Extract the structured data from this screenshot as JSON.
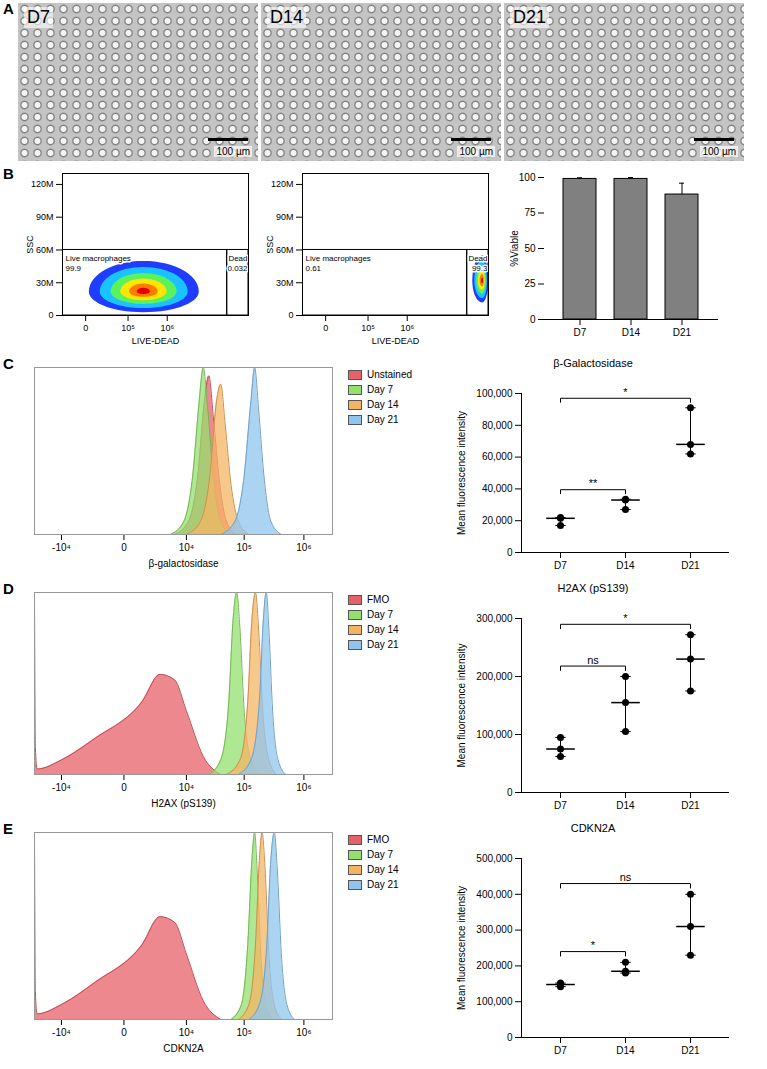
{
  "chart_data": [
    {
      "panel": "A",
      "type": "image",
      "images": [
        {
          "label": "D7",
          "scale_bar": "100 µm"
        },
        {
          "label": "D14",
          "scale_bar": "100 µm"
        },
        {
          "label": "D21",
          "scale_bar": "100 µm"
        }
      ]
    },
    {
      "panel": "B",
      "type": "density",
      "xlabel": "LIVE-DEAD",
      "ylabel": "SSC",
      "log": "x",
      "xlim": [
        -27000,
        100000000
      ],
      "xticks": [
        0,
        {
          "value": 100000,
          "label": "10⁵"
        },
        {
          "value": 1000000,
          "label": "10⁶"
        }
      ],
      "ylim": [
        0,
        130000000
      ],
      "yticks": [
        0,
        {
          "value": 30000000,
          "label": "30M"
        },
        {
          "value": 60000000,
          "label": "60M"
        },
        {
          "value": 90000000,
          "label": "90M"
        },
        {
          "value": 120000000,
          "label": "120M"
        }
      ],
      "population": {
        "x": [
          2000,
          250000,
          6000000
        ],
        "y": [
          3000000,
          22000000,
          50000000
        ]
      },
      "gates": [
        {
          "name": "Live macrophages",
          "value": 99.9,
          "xrange": [
            -27000,
            30000000
          ],
          "yrange": [
            0,
            60000000
          ]
        },
        {
          "name": "Dead",
          "value": 0.032,
          "xrange": [
            30000000,
            100000000
          ],
          "yrange": [
            0,
            60000000
          ]
        }
      ]
    },
    {
      "type": "density",
      "xlabel": "LIVE-DEAD",
      "ylabel": "SSC",
      "log": "x",
      "xlim": [
        -27000,
        100000000
      ],
      "xticks": [
        0,
        {
          "value": 100000,
          "label": "10⁵"
        },
        {
          "value": 1000000,
          "label": "10⁶"
        }
      ],
      "ylim": [
        0,
        130000000
      ],
      "yticks": [
        0,
        {
          "value": 30000000,
          "label": "30M"
        },
        {
          "value": 60000000,
          "label": "60M"
        },
        {
          "value": 90000000,
          "label": "90M"
        },
        {
          "value": 120000000,
          "label": "120M"
        }
      ],
      "population": {
        "x": [
          40000000,
          70000000,
          98000000
        ],
        "y": [
          12000000,
          32000000,
          55000000
        ]
      },
      "gates": [
        {
          "name": "Live macrophages",
          "value": 0.61,
          "xrange": [
            -27000,
            30000000
          ],
          "yrange": [
            0,
            60000000
          ]
        },
        {
          "name": "Dead",
          "value": 99.3,
          "xrange": [
            30000000,
            100000000
          ],
          "yrange": [
            0,
            60000000
          ]
        }
      ]
    },
    {
      "type": "bar",
      "ylabel": "%Viable",
      "categories": [
        "D7",
        "D14",
        "D21"
      ],
      "values": [
        99,
        99,
        88
      ],
      "errors": [
        0.8,
        1,
        8
      ],
      "color": "#808080",
      "ylim": [
        0,
        100
      ],
      "yticks": [
        0,
        25,
        50,
        75,
        100
      ]
    },
    {
      "panel": "C",
      "type": "area",
      "xlabel": "β-galactosidase",
      "log": "x",
      "xlim": [
        -30000,
        3000000
      ],
      "xticks": [
        {
          "value": -10000,
          "label": "-10⁴"
        },
        0,
        {
          "value": 10000,
          "label": "10⁴"
        },
        {
          "value": 100000,
          "label": "10⁵"
        },
        {
          "value": 1000000,
          "label": "10⁶"
        }
      ],
      "ylim": [
        0,
        100
      ],
      "tick_labels": "x",
      "legend": "right",
      "series": [
        {
          "name": "Unstained",
          "color": "#e8606a",
          "x": [
            6000,
            11000,
            16000,
            21000,
            25000,
            30000,
            38000,
            50000,
            75000
          ],
          "values": [
            0,
            8,
            35,
            80,
            95,
            70,
            32,
            8,
            0
          ]
        },
        {
          "name": "Day 7",
          "color": "#93e06e",
          "x": [
            5000,
            9000,
            13000,
            17000,
            20000,
            24000,
            30000,
            40000,
            60000
          ],
          "values": [
            0,
            8,
            35,
            80,
            100,
            75,
            35,
            8,
            0
          ]
        },
        {
          "name": "Day 14",
          "color": "#f5b463",
          "x": [
            10000,
            18000,
            26000,
            34000,
            40000,
            48000,
            60000,
            80000,
            120000
          ],
          "values": [
            0,
            8,
            35,
            80,
            90,
            65,
            30,
            8,
            0
          ]
        },
        {
          "name": "Day 21",
          "color": "#8fc6ef",
          "x": [
            40000,
            70000,
            100000,
            130000,
            150000,
            175000,
            215000,
            280000,
            420000
          ],
          "values": [
            0,
            8,
            35,
            80,
            100,
            75,
            35,
            8,
            0
          ]
        }
      ]
    },
    {
      "type": "scatter",
      "title": "β-Galactosidase",
      "ylabel": "Mean fluorescence intensity",
      "categories": [
        "D7",
        "D14",
        "D21"
      ],
      "values": [
        [
          22000,
          21500,
          17000
        ],
        [
          33500,
          33000,
          27000
        ],
        [
          91000,
          68000,
          62000
        ]
      ],
      "median": [
        21500,
        33000,
        68000
      ],
      "error_low": [
        17000,
        27000,
        62000
      ],
      "error_high": [
        22000,
        33500,
        91000
      ],
      "ylim": [
        0,
        100000
      ],
      "yticks": [
        0,
        {
          "value": 20000,
          "label": "20,000"
        },
        {
          "value": 40000,
          "label": "40,000"
        },
        {
          "value": 60000,
          "label": "60,000"
        },
        {
          "value": 80000,
          "label": "80,000"
        },
        {
          "value": 100000,
          "label": "100,000"
        }
      ],
      "comparisons": [
        {
          "from": "D7",
          "to": "D14",
          "label": "**"
        },
        {
          "from": "D7",
          "to": "D21",
          "label": "*"
        }
      ]
    },
    {
      "panel": "D",
      "type": "area",
      "xlabel": "H2AX (pS139)",
      "log": "x",
      "xlim": [
        -30000,
        3000000
      ],
      "xticks": [
        {
          "value": -10000,
          "label": "-10⁴"
        },
        0,
        {
          "value": 10000,
          "label": "10⁴"
        },
        {
          "value": 100000,
          "label": "10⁵"
        },
        {
          "value": 1000000,
          "label": "10⁶"
        }
      ],
      "ylim": [
        0,
        100
      ],
      "tick_labels": "x",
      "legend": "right",
      "series": [
        {
          "name": "FMO",
          "color": "#e8606a",
          "x": [
            -30000,
            -29000,
            -27000,
            -10000,
            -2000,
            1000,
            3000,
            6000,
            10000,
            20000,
            40000
          ],
          "values": [
            100,
            15,
            3,
            8,
            20,
            40,
            55,
            52,
            35,
            10,
            0
          ]
        },
        {
          "name": "Day 7",
          "color": "#93e06e",
          "x": [
            25000,
            40000,
            55000,
            65000,
            75000,
            85000,
            100000,
            130000,
            180000
          ],
          "values": [
            0,
            8,
            40,
            85,
            100,
            80,
            35,
            8,
            0
          ]
        },
        {
          "name": "Day 14",
          "color": "#f5b463",
          "x": [
            50000,
            85000,
            115000,
            135000,
            155000,
            175000,
            205000,
            260000,
            350000
          ],
          "values": [
            0,
            8,
            40,
            85,
            100,
            80,
            35,
            8,
            0
          ]
        },
        {
          "name": "Day 21",
          "color": "#8fc6ef",
          "x": [
            80000,
            130000,
            180000,
            210000,
            235000,
            260000,
            300000,
            370000,
            500000
          ],
          "values": [
            0,
            8,
            40,
            85,
            100,
            80,
            35,
            8,
            0
          ]
        }
      ]
    },
    {
      "type": "scatter",
      "title": "H2AX (pS139)",
      "ylabel": "Mean fluorescence intensity",
      "categories": [
        "D7",
        "D14",
        "D21"
      ],
      "values": [
        [
          95000,
          75000,
          62000
        ],
        [
          200000,
          155000,
          105000
        ],
        [
          272000,
          230000,
          175000
        ]
      ],
      "median": [
        75000,
        155000,
        230000
      ],
      "error_low": [
        62000,
        105000,
        175000
      ],
      "error_high": [
        95000,
        200000,
        272000
      ],
      "ylim": [
        0,
        300000
      ],
      "yticks": [
        0,
        {
          "value": 100000,
          "label": "100,000"
        },
        {
          "value": 200000,
          "label": "200,000"
        },
        {
          "value": 300000,
          "label": "300,000"
        }
      ],
      "comparisons": [
        {
          "from": "D7",
          "to": "D14",
          "label": "ns"
        },
        {
          "from": "D7",
          "to": "D21",
          "label": "*"
        }
      ]
    },
    {
      "panel": "E",
      "type": "area",
      "xlabel": "CDKN2A",
      "log": "x",
      "xlim": [
        -30000,
        3000000
      ],
      "xticks": [
        {
          "value": -10000,
          "label": "-10⁴"
        },
        0,
        {
          "value": 10000,
          "label": "10⁴"
        },
        {
          "value": 100000,
          "label": "10⁵"
        },
        {
          "value": 1000000,
          "label": "10⁶"
        }
      ],
      "ylim": [
        0,
        100
      ],
      "tick_labels": "x",
      "legend": "right",
      "series": [
        {
          "name": "FMO",
          "color": "#e8606a",
          "x": [
            -30000,
            -29000,
            -27000,
            -10000,
            -2000,
            1000,
            3000,
            6000,
            10000,
            20000,
            40000
          ],
          "values": [
            100,
            15,
            3,
            8,
            20,
            40,
            55,
            52,
            35,
            10,
            0
          ]
        },
        {
          "name": "Day 7",
          "color": "#93e06e",
          "x": [
            60000,
            90000,
            115000,
            135000,
            150000,
            165000,
            190000,
            230000,
            300000
          ],
          "values": [
            0,
            8,
            40,
            85,
            100,
            80,
            35,
            8,
            0
          ]
        },
        {
          "name": "Day 14",
          "color": "#f5b463",
          "x": [
            80000,
            120000,
            155000,
            180000,
            200000,
            225000,
            260000,
            320000,
            420000
          ],
          "values": [
            0,
            8,
            40,
            85,
            100,
            80,
            35,
            8,
            0
          ]
        },
        {
          "name": "Day 21",
          "color": "#8fc6ef",
          "x": [
            120000,
            180000,
            240000,
            280000,
            320000,
            360000,
            420000,
            520000,
            700000
          ],
          "values": [
            0,
            8,
            40,
            85,
            100,
            80,
            35,
            8,
            0
          ]
        }
      ]
    },
    {
      "type": "scatter",
      "title": "CDKN2A",
      "ylabel": "Mean fluorescence intensity",
      "categories": [
        "D7",
        "D14",
        "D21"
      ],
      "values": [
        [
          152000,
          148000,
          142000
        ],
        [
          210000,
          185000,
          180000
        ],
        [
          400000,
          310000,
          230000
        ]
      ],
      "median": [
        148000,
        185000,
        310000
      ],
      "error_low": [
        142000,
        180000,
        230000
      ],
      "error_high": [
        152000,
        210000,
        400000
      ],
      "ylim": [
        0,
        500000
      ],
      "yticks": [
        0,
        {
          "value": 100000,
          "label": "100,000"
        },
        {
          "value": 200000,
          "label": "200,000"
        },
        {
          "value": 300000,
          "label": "300,000"
        },
        {
          "value": 400000,
          "label": "400,000"
        },
        {
          "value": 500000,
          "label": "500,000"
        }
      ],
      "comparisons": [
        {
          "from": "D7",
          "to": "D14",
          "label": "*"
        },
        {
          "from": "D7",
          "to": "D21",
          "label": "ns"
        }
      ]
    }
  ]
}
